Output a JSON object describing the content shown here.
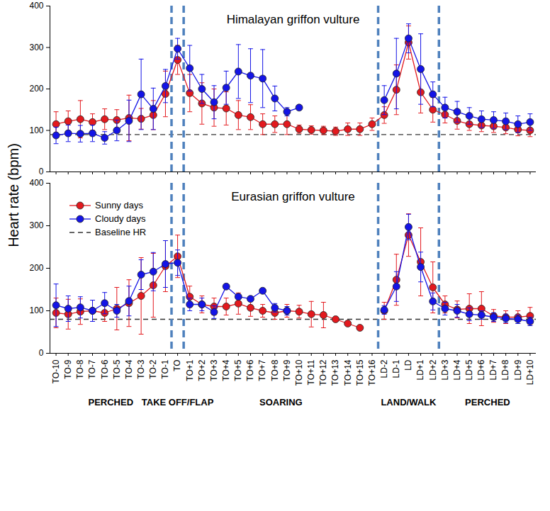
{
  "chart_data": [
    {
      "type": "line",
      "title": "Himalayan griffon vulture",
      "ylabel": "Heart rate (bpm)",
      "categories": [
        "TO-10",
        "TO-9",
        "TO-8",
        "TO-7",
        "TO-6",
        "TO-5",
        "TO-4",
        "TO-3",
        "TO-2",
        "TO-1",
        "TO",
        "TO+1",
        "TO+2",
        "TO+3",
        "TO+4",
        "TO+5",
        "TO+6",
        "TO+7",
        "TO+8",
        "TO+9",
        "TO+10",
        "TO+11",
        "TO+12",
        "TO+13",
        "TO+14",
        "TO+15",
        "TO+16",
        "LD-2",
        "LD-1",
        "LD",
        "LD+1",
        "LD+2",
        "LD+3",
        "LD+4",
        "LD+5",
        "LD+6",
        "LD+7",
        "LD+8",
        "LD+9",
        "LD+10"
      ],
      "series": [
        {
          "name": "Sunny days",
          "color": "#e3191e",
          "marker": "circle",
          "values": [
            115,
            122,
            127,
            120,
            127,
            125,
            130,
            128,
            137,
            188,
            270,
            190,
            165,
            155,
            153,
            137,
            132,
            115,
            115,
            115,
            103,
            101,
            100,
            98,
            103,
            103,
            115,
            137,
            198,
            312,
            192,
            150,
            138,
            123,
            115,
            112,
            110,
            107,
            102,
            100
          ],
          "errors": [
            30,
            25,
            45,
            20,
            25,
            25,
            55,
            25,
            35,
            55,
            35,
            45,
            50,
            45,
            40,
            35,
            30,
            25,
            20,
            25,
            10,
            10,
            10,
            10,
            15,
            15,
            15,
            20,
            60,
            40,
            50,
            30,
            20,
            20,
            15,
            15,
            15,
            15,
            15,
            15
          ]
        },
        {
          "name": "Cloudy days",
          "color": "#1414e6",
          "marker": "circle",
          "values": [
            88,
            93,
            92,
            93,
            82,
            100,
            123,
            187,
            152,
            207,
            297,
            250,
            200,
            168,
            203,
            242,
            232,
            225,
            177,
            145,
            155,
            null,
            null,
            null,
            null,
            null,
            null,
            173,
            237,
            322,
            248,
            187,
            155,
            145,
            135,
            127,
            125,
            122,
            115,
            120
          ],
          "errors": [
            20,
            20,
            20,
            20,
            15,
            25,
            50,
            85,
            50,
            40,
            25,
            55,
            35,
            40,
            40,
            65,
            65,
            70,
            30,
            10,
            5,
            null,
            null,
            null,
            null,
            null,
            null,
            35,
            85,
            35,
            85,
            30,
            25,
            25,
            20,
            20,
            20,
            20,
            20,
            20
          ]
        }
      ],
      "baseline": {
        "value": 90,
        "color": "#333333",
        "line_style": "dashed"
      },
      "ylim": [
        0,
        400
      ],
      "yticks": [
        0,
        100,
        200,
        300,
        400
      ],
      "grid": false,
      "tick_labels": "y"
    },
    {
      "type": "line",
      "title": "Eurasian griffon vulture",
      "categories": [
        "TO-10",
        "TO-9",
        "TO-8",
        "TO-7",
        "TO-6",
        "TO-5",
        "TO-4",
        "TO-3",
        "TO-2",
        "TO-1",
        "TO",
        "TO+1",
        "TO+2",
        "TO+3",
        "TO+4",
        "TO+5",
        "TO+6",
        "TO+7",
        "TO+8",
        "TO+9",
        "TO+10",
        "TO+11",
        "TO+12",
        "TO+13",
        "TO+14",
        "TO+15",
        "TO+16",
        "LD-2",
        "LD-1",
        "LD",
        "LD+1",
        "LD+2",
        "LD+3",
        "LD+4",
        "LD+5",
        "LD+6",
        "LD+7",
        "LD+8",
        "LD+9",
        "LD+10"
      ],
      "series": [
        {
          "name": "Sunny days",
          "color": "#e3191e",
          "marker": "circle",
          "values": [
            95,
            92,
            98,
            100,
            95,
            105,
            118,
            135,
            160,
            205,
            228,
            133,
            115,
            110,
            110,
            117,
            107,
            100,
            95,
            100,
            98,
            92,
            90,
            80,
            70,
            60,
            null,
            100,
            173,
            278,
            215,
            155,
            115,
            103,
            105,
            105,
            88,
            85,
            85,
            88
          ],
          "errors": [
            35,
            35,
            30,
            25,
            20,
            50,
            55,
            90,
            75,
            60,
            50,
            25,
            20,
            20,
            20,
            25,
            20,
            15,
            15,
            15,
            15,
            30,
            30,
            5,
            5,
            5,
            null,
            20,
            60,
            50,
            80,
            60,
            20,
            20,
            35,
            40,
            15,
            15,
            15,
            20
          ]
        },
        {
          "name": "Cloudy days",
          "color": "#1414e6",
          "marker": "circle",
          "values": [
            113,
            105,
            108,
            100,
            118,
            100,
            123,
            185,
            192,
            210,
            213,
            115,
            115,
            97,
            157,
            133,
            128,
            147,
            107,
            100,
            null,
            null,
            null,
            null,
            null,
            null,
            null,
            102,
            157,
            297,
            203,
            122,
            105,
            100,
            92,
            90,
            85,
            82,
            80,
            75
          ],
          "errors": [
            50,
            30,
            25,
            25,
            25,
            15,
            35,
            35,
            45,
            55,
            30,
            15,
            15,
            15,
            0,
            0,
            0,
            0,
            10,
            10,
            null,
            null,
            null,
            null,
            null,
            null,
            null,
            10,
            35,
            30,
            35,
            20,
            15,
            15,
            15,
            10,
            10,
            10,
            10,
            10
          ]
        }
      ],
      "baseline": {
        "name": "Baseline HR",
        "value": 80,
        "color": "#333333",
        "line_style": "dashed"
      },
      "phases": [
        {
          "label": "PERCHED",
          "start": "TO-10",
          "end": "TO-1"
        },
        {
          "label": "TAKE OFF/FLAP",
          "start": "TO",
          "end": "TO"
        },
        {
          "label": "SOARING",
          "start": "TO+1",
          "end": "TO+16"
        },
        {
          "label": "LAND/WALK",
          "start": "LD-2",
          "end": "LD+2"
        },
        {
          "label": "PERCHED",
          "start": "LD+3",
          "end": "LD+10"
        }
      ],
      "legend": "top-left",
      "ylim": [
        0,
        400
      ],
      "yticks": [
        0,
        100,
        200,
        300,
        400
      ],
      "grid": false
    }
  ]
}
